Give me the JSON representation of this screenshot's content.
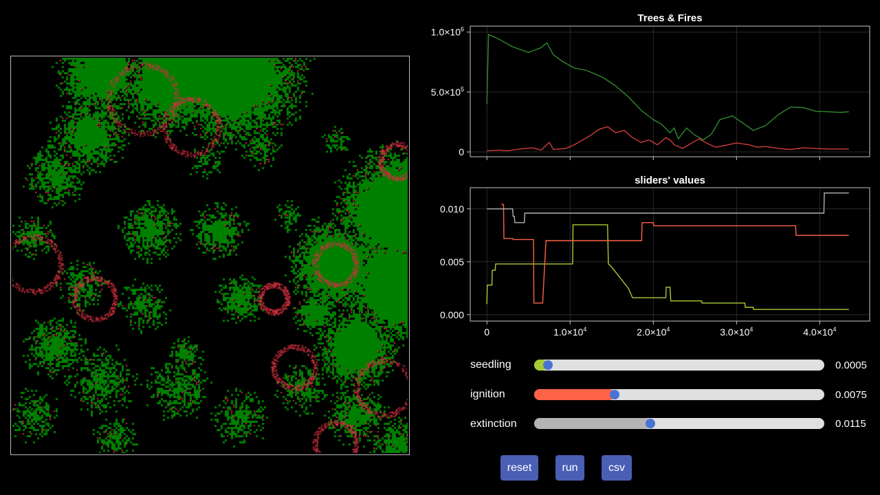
{
  "colors": {
    "tree": "#008000",
    "fire": "#d33040",
    "background": "#000000",
    "seedling": "#a8cd32",
    "ignition": "#ff6347",
    "extinction": "#b4b4b4",
    "knob": "#4a73d6",
    "button": "#4a5fb4"
  },
  "sliders": [
    {
      "name": "seedling",
      "label": "seedling",
      "value_text": "0.0005",
      "fraction": 0.03
    },
    {
      "name": "ignition",
      "label": "ignition",
      "value_text": "0.0075",
      "fraction": 0.26
    },
    {
      "name": "extinction",
      "label": "extinction",
      "value_text": "0.0115",
      "fraction": 0.385
    }
  ],
  "buttons": {
    "reset": "reset",
    "run": "run",
    "csv": "csv"
  },
  "chart_data": [
    {
      "type": "line",
      "title": "Trees & Fires",
      "xlabel": "",
      "ylabel": "",
      "xlim": [
        -2000,
        46000
      ],
      "ylim": [
        -40000,
        1050000
      ],
      "x_ticks": [
        0,
        10000,
        20000,
        30000,
        40000
      ],
      "y_ticks": [
        {
          "value": 0,
          "label": "0",
          "exp": ""
        },
        {
          "value": 500000,
          "label": "5.0×10",
          "exp": "5"
        },
        {
          "value": 1000000,
          "label": "1.0×10",
          "exp": "6"
        }
      ],
      "grid": true,
      "series": [
        {
          "color": "#2e8b2e",
          "x": [
            0,
            200,
            1500,
            3000,
            5000,
            6500,
            7200,
            8000,
            9000,
            10500,
            12000,
            14000,
            15500,
            17000,
            18500,
            20000,
            21000,
            22000,
            22500,
            23000,
            24000,
            25000,
            26000,
            27000,
            28000,
            29500,
            31000,
            32000,
            33500,
            35000,
            36500,
            38000,
            39500,
            41000,
            42500,
            43500
          ],
          "y": [
            400000,
            980000,
            940000,
            880000,
            830000,
            870000,
            910000,
            810000,
            760000,
            700000,
            680000,
            620000,
            550000,
            460000,
            350000,
            270000,
            230000,
            160000,
            200000,
            110000,
            200000,
            140000,
            100000,
            150000,
            270000,
            300000,
            230000,
            180000,
            220000,
            310000,
            375000,
            370000,
            340000,
            335000,
            330000,
            335000
          ]
        },
        {
          "color": "#d03c3c",
          "x": [
            0,
            1500,
            2500,
            4000,
            5500,
            6500,
            7500,
            8000,
            9500,
            10500,
            11500,
            12500,
            13500,
            14500,
            15500,
            16500,
            17500,
            18500,
            19500,
            20500,
            21500,
            22000,
            22500,
            23500,
            24500,
            25500,
            26500,
            27500,
            29000,
            30000,
            31500,
            32500,
            33500,
            35000,
            36500,
            38000,
            39500,
            41000,
            43500
          ],
          "y": [
            10000,
            15000,
            10000,
            25000,
            35000,
            15000,
            80000,
            20000,
            30000,
            60000,
            100000,
            140000,
            190000,
            210000,
            160000,
            180000,
            120000,
            80000,
            100000,
            60000,
            120000,
            100000,
            60000,
            30000,
            70000,
            110000,
            70000,
            40000,
            60000,
            75000,
            60000,
            40000,
            45000,
            30000,
            20000,
            35000,
            30000,
            25000,
            25000
          ]
        }
      ]
    },
    {
      "type": "line",
      "title": "sliders' values",
      "xlabel": "",
      "ylabel": "",
      "xlim": [
        -2000,
        46000
      ],
      "ylim": [
        -0.0006,
        0.012
      ],
      "x_ticks": [
        {
          "value": 0,
          "label": "0",
          "exp": ""
        },
        {
          "value": 10000,
          "label": "1.0×10",
          "exp": "4"
        },
        {
          "value": 20000,
          "label": "2.0×10",
          "exp": "4"
        },
        {
          "value": 30000,
          "label": "3.0×10",
          "exp": "4"
        },
        {
          "value": 40000,
          "label": "4.0×10",
          "exp": "4"
        }
      ],
      "y_ticks": [
        {
          "value": 0,
          "label": "0.000",
          "exp": ""
        },
        {
          "value": 0.005,
          "label": "0.005",
          "exp": ""
        },
        {
          "value": 0.01,
          "label": "0.010",
          "exp": ""
        }
      ],
      "grid": true,
      "series": [
        {
          "name": "seedling",
          "color": "#a8cd32",
          "x": [
            0,
            50,
            600,
            650,
            1000,
            1050,
            10300,
            10350,
            14500,
            14600,
            15000,
            15500,
            16000,
            17000,
            17500,
            18000,
            21500,
            21550,
            22000,
            22100,
            25800,
            25850,
            31000,
            31050,
            32000,
            32050,
            43500
          ],
          "y": [
            0.001,
            0.0028,
            0.0028,
            0.0042,
            0.0042,
            0.0048,
            0.0048,
            0.0085,
            0.0085,
            0.0048,
            0.0045,
            0.004,
            0.0035,
            0.0025,
            0.0016,
            0.0016,
            0.0016,
            0.0026,
            0.0026,
            0.0013,
            0.0013,
            0.0011,
            0.0011,
            0.0007,
            0.0007,
            0.0005,
            0.0005
          ]
        },
        {
          "name": "ignition",
          "color": "#ff6347",
          "x": [
            1800,
            1850,
            2000,
            2050,
            3100,
            3150,
            5600,
            5650,
            6100,
            6150,
            6700,
            7100,
            7150,
            18600,
            18650,
            20000,
            20050,
            37100,
            37150,
            43500
          ],
          "y": [
            0.0105,
            0.0104,
            0.0104,
            0.0072,
            0.0072,
            0.0071,
            0.0071,
            0.0011,
            0.0011,
            0.0011,
            0.0011,
            0.007,
            0.007,
            0.007,
            0.0087,
            0.0087,
            0.0084,
            0.0084,
            0.0075,
            0.0075
          ]
        },
        {
          "name": "extinction",
          "color": "#b4b4b4",
          "x": [
            0,
            3100,
            3150,
            3300,
            3350,
            4500,
            4550,
            40500,
            40550,
            43500
          ],
          "y": [
            0.01,
            0.01,
            0.0093,
            0.0093,
            0.0087,
            0.0087,
            0.0096,
            0.0096,
            0.0115,
            0.0115
          ]
        }
      ]
    }
  ]
}
